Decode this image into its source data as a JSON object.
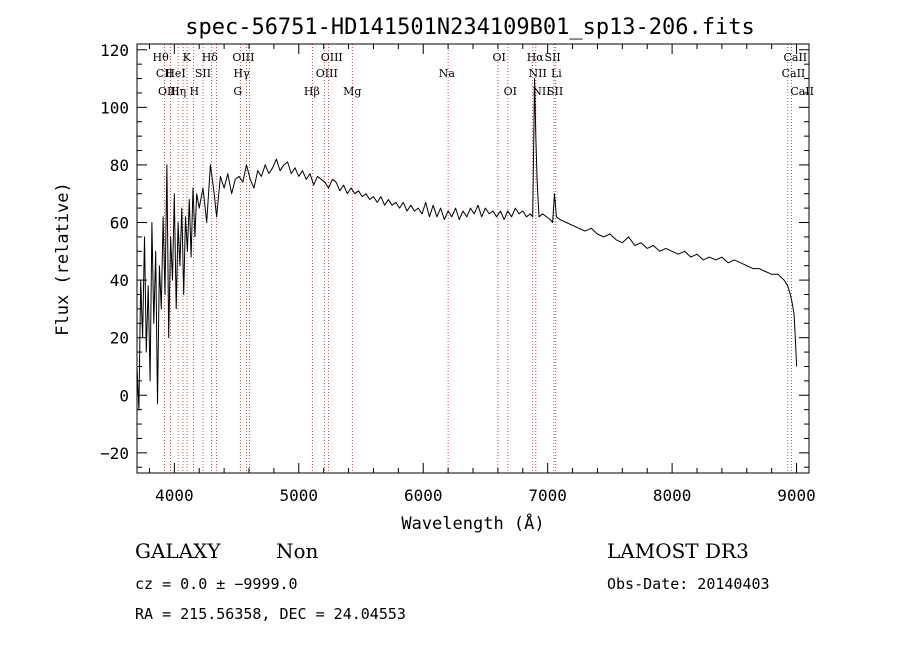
{
  "chart_data": {
    "type": "line",
    "title": "spec-56751-HD141501N234109B01_sp13-206.fits",
    "xlabel": "Wavelength (Å)",
    "ylabel": "Flux (relative)",
    "xlim": [
      3700,
      9100
    ],
    "ylim": [
      -27,
      122
    ],
    "x_ticks": [
      4000,
      5000,
      6000,
      7000,
      8000,
      9000
    ],
    "y_ticks": [
      -20,
      0,
      20,
      40,
      60,
      80,
      100,
      120
    ],
    "x_tick_labels": [
      "4000",
      "5000",
      "6000",
      "7000",
      "8000",
      "9000"
    ],
    "y_tick_labels": [
      "−20",
      "0",
      "20",
      "40",
      "60",
      "80",
      "100",
      "120"
    ],
    "series": [
      {
        "name": "flux",
        "x": [
          3700,
          3715,
          3730,
          3745,
          3760,
          3775,
          3790,
          3805,
          3820,
          3835,
          3850,
          3865,
          3880,
          3895,
          3910,
          3925,
          3940,
          3955,
          3970,
          3985,
          4000,
          4015,
          4030,
          4045,
          4060,
          4075,
          4090,
          4105,
          4120,
          4135,
          4150,
          4165,
          4180,
          4200,
          4230,
          4260,
          4290,
          4320,
          4340,
          4370,
          4400,
          4430,
          4460,
          4490,
          4520,
          4550,
          4580,
          4610,
          4640,
          4670,
          4700,
          4730,
          4760,
          4790,
          4820,
          4850,
          4880,
          4910,
          4940,
          4970,
          5000,
          5030,
          5060,
          5090,
          5120,
          5150,
          5180,
          5210,
          5240,
          5270,
          5300,
          5330,
          5360,
          5390,
          5420,
          5450,
          5480,
          5510,
          5540,
          5570,
          5600,
          5630,
          5660,
          5690,
          5720,
          5750,
          5780,
          5810,
          5840,
          5870,
          5900,
          5930,
          5960,
          5990,
          6020,
          6050,
          6080,
          6110,
          6140,
          6170,
          6200,
          6230,
          6260,
          6290,
          6320,
          6350,
          6380,
          6410,
          6440,
          6470,
          6500,
          6530,
          6560,
          6590,
          6620,
          6650,
          6680,
          6710,
          6740,
          6770,
          6800,
          6830,
          6860,
          6880,
          6895,
          6905,
          6915,
          6930,
          6960,
          6990,
          7020,
          7040,
          7055,
          7070,
          7100,
          7150,
          7200,
          7250,
          7300,
          7350,
          7400,
          7450,
          7500,
          7550,
          7600,
          7650,
          7700,
          7750,
          7800,
          7850,
          7900,
          7950,
          8000,
          8050,
          8100,
          8150,
          8200,
          8250,
          8300,
          8350,
          8400,
          8450,
          8500,
          8550,
          8600,
          8650,
          8700,
          8750,
          8800,
          8850,
          8900,
          8930,
          8950,
          8965,
          8980,
          8990,
          9000
        ],
        "y": [
          10,
          -5,
          40,
          20,
          55,
          15,
          38,
          5,
          60,
          25,
          50,
          -3,
          45,
          30,
          62,
          35,
          80,
          20,
          55,
          40,
          70,
          30,
          60,
          45,
          65,
          35,
          62,
          50,
          68,
          48,
          72,
          55,
          70,
          65,
          72,
          60,
          80,
          70,
          62,
          76,
          72,
          77,
          70,
          75,
          76,
          74,
          80,
          75,
          72,
          78,
          76,
          80,
          77,
          79,
          82,
          78,
          80,
          81,
          77,
          79,
          76,
          78,
          75,
          77,
          73,
          76,
          75,
          74,
          72,
          75,
          74,
          71,
          73,
          70,
          72,
          70,
          71,
          69,
          70,
          68,
          69,
          67,
          69,
          66,
          68,
          66,
          67,
          65,
          67,
          64,
          66,
          64,
          65,
          63,
          67,
          62,
          66,
          62,
          65,
          61,
          64,
          62,
          65,
          61,
          64,
          62,
          65,
          63,
          66,
          62,
          65,
          63,
          64,
          62,
          64,
          61,
          64,
          62,
          65,
          63,
          64,
          62,
          63,
          62,
          110,
          90,
          75,
          62,
          63,
          62,
          61,
          60,
          70,
          62,
          61,
          60,
          59,
          58,
          57,
          58,
          56,
          55,
          56,
          54,
          53,
          55,
          52,
          53,
          51,
          52,
          50,
          51,
          50,
          49,
          50,
          48,
          49,
          47,
          48,
          47,
          48,
          46,
          47,
          46,
          45,
          44,
          44,
          43,
          42,
          42,
          40,
          38,
          35,
          32,
          28,
          20,
          10
        ]
      }
    ],
    "spectral_lines": [
      {
        "label": "Hθ",
        "x": 3890,
        "row": 1
      },
      {
        "label": "CII",
        "x": 3920,
        "row": 2
      },
      {
        "label": "OII",
        "x": 3940,
        "row": 3
      },
      {
        "label": "HeI",
        "x": 4010,
        "row": 2
      },
      {
        "label": "Hη",
        "x": 4030,
        "row": 3
      },
      {
        "label": "K",
        "x": 4100,
        "row": 1
      },
      {
        "label": "H",
        "x": 4160,
        "row": 3
      },
      {
        "label": "SII",
        "x": 4230,
        "row": 2
      },
      {
        "label": "Hδ",
        "x": 4285,
        "row": 1
      },
      {
        "label": "OIII",
        "x": 4555,
        "row": 1
      },
      {
        "label": "Hγ",
        "x": 4540,
        "row": 2
      },
      {
        "label": "G",
        "x": 4510,
        "row": 3
      },
      {
        "label": "Hβ",
        "x": 5105,
        "row": 3
      },
      {
        "label": "OIII",
        "x": 5265,
        "row": 1
      },
      {
        "label": "OIII",
        "x": 5225,
        "row": 2
      },
      {
        "label": "Mg",
        "x": 5430,
        "row": 3
      },
      {
        "label": "Na",
        "x": 6190,
        "row": 2
      },
      {
        "label": "OI",
        "x": 6610,
        "row": 1
      },
      {
        "label": "OI",
        "x": 6700,
        "row": 3
      },
      {
        "label": "Hα",
        "x": 6900,
        "row": 1
      },
      {
        "label": "SII",
        "x": 7040,
        "row": 1
      },
      {
        "label": "NII",
        "x": 6920,
        "row": 2
      },
      {
        "label": "Li",
        "x": 7070,
        "row": 2
      },
      {
        "label": "NII",
        "x": 6950,
        "row": 3
      },
      {
        "label": "SII",
        "x": 7060,
        "row": 3
      },
      {
        "label": "CaII",
        "x": 8990,
        "row": 1
      },
      {
        "label": "CaII",
        "x": 8975,
        "row": 2
      },
      {
        "label": "CaII",
        "x": 9045,
        "row": 3
      }
    ],
    "line_marker_x": [
      3922,
      3970,
      4030,
      4070,
      4102,
      4155,
      4230,
      4300,
      4340,
      4530,
      4580,
      4605,
      5110,
      5205,
      5240,
      5430,
      6200,
      6600,
      6680,
      6880,
      6905,
      7050,
      7065,
      8930,
      8960
    ]
  },
  "info": {
    "object_class": "GALAXY",
    "subclass": "Non",
    "survey": "LAMOST DR3",
    "cz": "cz = 0.0 ± −9999.0",
    "obs_date": "Obs-Date: 20140403",
    "radec": "RA = 215.56358, DEC =  24.04553"
  },
  "colors": {
    "axis": "#000000",
    "line_marker": "#b22222",
    "spectrum": "#000000"
  }
}
